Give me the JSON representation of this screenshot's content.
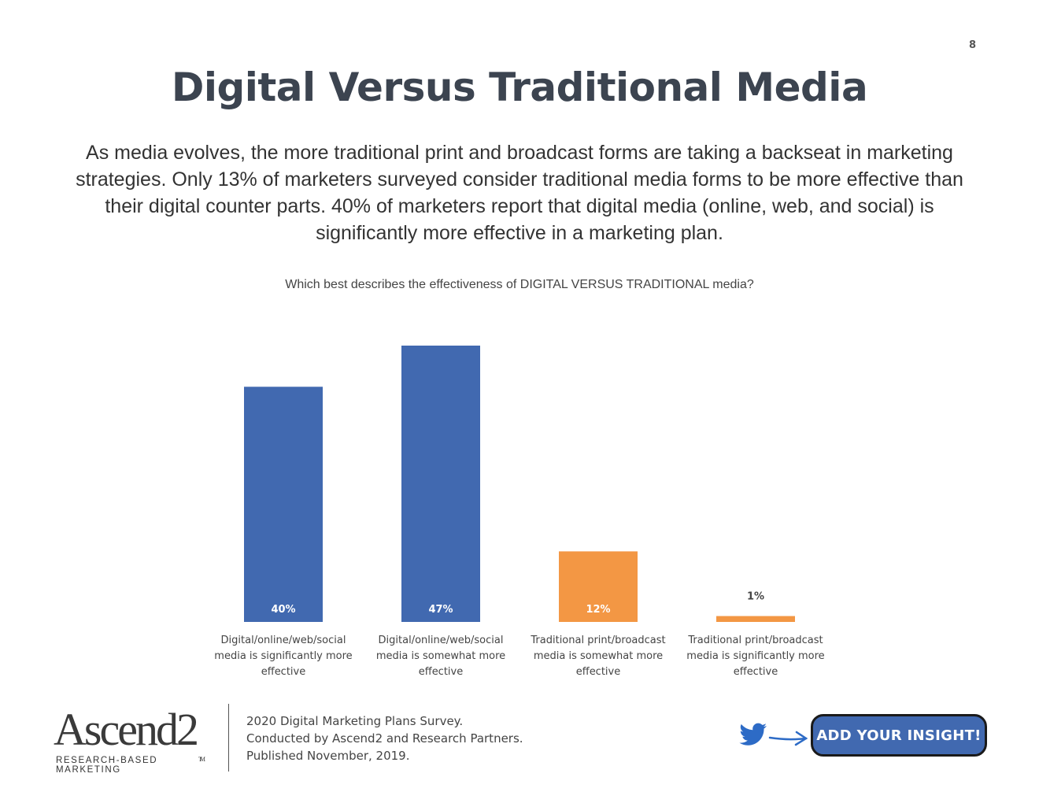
{
  "page": {
    "number": "8",
    "title": "Digital Versus Traditional Media",
    "intro": "As media evolves, the more traditional print and broadcast forms are taking a backseat in marketing strategies. Only 13% of marketers surveyed consider traditional media forms to be more effective than their digital counter parts. 40% of marketers report that digital media (online, web, and social) is significantly more effective in a marketing plan."
  },
  "chart_data": {
    "type": "bar",
    "title": "Which best describes the effectiveness of DIGITAL VERSUS TRADITIONAL media?",
    "categories": [
      "Digital/online/web/social media is significantly more effective",
      "Digital/online/web/social media is somewhat more effective",
      "Traditional print/broadcast media is somewhat more effective",
      "Traditional print/broadcast media is significantly more effective"
    ],
    "category_lines": [
      [
        "Digital/online/web/social",
        "media is significantly more",
        "effective"
      ],
      [
        "Digital/online/web/social",
        "media is somewhat more",
        "effective"
      ],
      [
        "Traditional print/broadcast",
        "media is somewhat more",
        "effective"
      ],
      [
        "Traditional print/broadcast",
        "media is significantly more",
        "effective"
      ]
    ],
    "values": [
      40,
      47,
      12,
      1
    ],
    "data_labels": [
      "40%",
      "47%",
      "12%",
      "1%"
    ],
    "colors": [
      "#4169b0",
      "#4169b0",
      "#f39744",
      "#f39744"
    ],
    "ylim": [
      0,
      47
    ],
    "xlabel": "",
    "ylabel": "",
    "grid": false,
    "legend": "none"
  },
  "footer": {
    "logo_name": "Ascend2",
    "logo_tm": "TM",
    "logo_tagline": "RESEARCH-BASED MARKETING",
    "source_lines": [
      "2020 Digital Marketing Plans Survey.",
      "Conducted  by Ascend2 and Research Partners.",
      "Published November, 2019."
    ],
    "button_label": "ADD YOUR INSIGHT!",
    "twitter_icon": "twitter-bird-icon",
    "arrow_icon": "arrow-right-icon",
    "twitter_color": "#2d6bc6"
  }
}
